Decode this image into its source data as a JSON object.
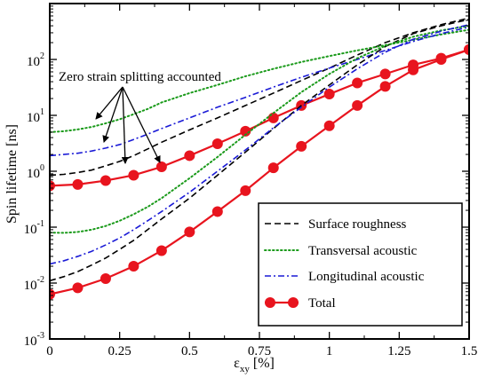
{
  "chart_data": {
    "type": "line",
    "xlabel": "ε",
    "xlabel_sub": "xy",
    "xlabel_unit": " [%]",
    "ylabel": "Spin lifetime [ns]",
    "xlim": [
      0,
      1.5
    ],
    "ylim": [
      0.001,
      1000
    ],
    "yscale": "log",
    "x_ticks": [
      {
        "value": 0,
        "label": "0"
      },
      {
        "value": 0.25,
        "label": "0.25"
      },
      {
        "value": 0.5,
        "label": "0.5"
      },
      {
        "value": 0.75,
        "label": "0.75"
      },
      {
        "value": 1,
        "label": "1"
      },
      {
        "value": 1.25,
        "label": "1.25"
      },
      {
        "value": 1.5,
        "label": "1.5"
      }
    ],
    "y_ticks": [
      {
        "value": 0.001,
        "base": "10",
        "exp": "-3"
      },
      {
        "value": 0.01,
        "base": "10",
        "exp": "-2"
      },
      {
        "value": 0.1,
        "base": "10",
        "exp": "-1"
      },
      {
        "value": 1,
        "base": "10",
        "exp": "0"
      },
      {
        "value": 10,
        "base": "10",
        "exp": "1"
      },
      {
        "value": 100,
        "base": "10",
        "exp": "2"
      }
    ],
    "annotation": {
      "text": "Zero strain splitting accounted"
    },
    "legend_position": "bottom-right",
    "series": [
      {
        "name": "Surface roughness",
        "group": "upper",
        "style": "dashed",
        "color": "#000000",
        "x": [
          0,
          0.05,
          0.1,
          0.15,
          0.2,
          0.25,
          0.3,
          0.35,
          0.4,
          0.5,
          0.6,
          0.7,
          0.8,
          0.9,
          1.0,
          1.1,
          1.2,
          1.3,
          1.4,
          1.5
        ],
        "y": [
          0.85,
          0.88,
          0.95,
          1.05,
          1.25,
          1.5,
          1.9,
          2.5,
          3.3,
          5.5,
          9,
          15,
          25,
          42,
          70,
          120,
          200,
          300,
          420,
          550
        ]
      },
      {
        "name": "Transversal acoustic",
        "group": "upper",
        "style": "dotted",
        "color": "#1a9a1a",
        "x": [
          0,
          0.05,
          0.1,
          0.15,
          0.2,
          0.25,
          0.3,
          0.35,
          0.4,
          0.5,
          0.6,
          0.7,
          0.8,
          0.9,
          1.0,
          1.1,
          1.2,
          1.3,
          1.4,
          1.5
        ],
        "y": [
          5.0,
          5.2,
          5.6,
          6.2,
          7.2,
          8.5,
          10.5,
          13,
          17,
          25,
          35,
          50,
          68,
          90,
          115,
          145,
          180,
          225,
          280,
          340
        ]
      },
      {
        "name": "Longitudinal acoustic",
        "group": "upper",
        "style": "dashdot",
        "color": "#1a1ad6",
        "x": [
          0,
          0.05,
          0.1,
          0.15,
          0.2,
          0.25,
          0.3,
          0.35,
          0.4,
          0.5,
          0.6,
          0.7,
          0.8,
          0.9,
          1.0,
          1.1,
          1.2,
          1.3,
          1.4,
          1.5
        ],
        "y": [
          1.9,
          2.0,
          2.1,
          2.3,
          2.6,
          3.0,
          3.7,
          4.6,
          5.8,
          9,
          14,
          21,
          32,
          48,
          70,
          100,
          145,
          210,
          290,
          380
        ]
      },
      {
        "name": "Total",
        "group": "upper",
        "style": "solid-markers",
        "color": "#e8141e",
        "x": [
          0,
          0.1,
          0.2,
          0.3,
          0.4,
          0.5,
          0.6,
          0.7,
          0.8,
          0.9,
          1.0,
          1.1,
          1.2,
          1.3,
          1.4,
          1.5
        ],
        "y": [
          0.55,
          0.58,
          0.68,
          0.85,
          1.2,
          1.9,
          3.1,
          5.2,
          9,
          15,
          24,
          38,
          55,
          80,
          105,
          150
        ]
      },
      {
        "name": "Surface roughness",
        "group": "lower",
        "style": "dashed",
        "color": "#000000",
        "x": [
          0,
          0.05,
          0.1,
          0.15,
          0.2,
          0.25,
          0.3,
          0.35,
          0.4,
          0.5,
          0.6,
          0.7,
          0.8,
          0.9,
          1.0,
          1.1,
          1.2,
          1.3,
          1.4,
          1.5
        ],
        "y": [
          0.011,
          0.013,
          0.016,
          0.021,
          0.028,
          0.04,
          0.058,
          0.09,
          0.14,
          0.33,
          0.85,
          2.2,
          5.8,
          15,
          35,
          80,
          170,
          290,
          400,
          520
        ]
      },
      {
        "name": "Transversal acoustic",
        "group": "lower",
        "style": "dotted",
        "color": "#1a9a1a",
        "x": [
          0,
          0.05,
          0.1,
          0.15,
          0.2,
          0.25,
          0.3,
          0.35,
          0.4,
          0.5,
          0.6,
          0.7,
          0.8,
          0.9,
          1.0,
          1.1,
          1.2,
          1.3,
          1.4,
          1.5
        ],
        "y": [
          0.08,
          0.079,
          0.082,
          0.09,
          0.105,
          0.13,
          0.17,
          0.23,
          0.33,
          0.75,
          1.8,
          4.5,
          11,
          26,
          55,
          105,
          175,
          255,
          330,
          400
        ]
      },
      {
        "name": "Longitudinal acoustic",
        "group": "lower",
        "style": "dashdot",
        "color": "#1a1ad6",
        "x": [
          0,
          0.05,
          0.1,
          0.15,
          0.2,
          0.25,
          0.3,
          0.35,
          0.4,
          0.5,
          0.6,
          0.7,
          0.8,
          0.9,
          1.0,
          1.1,
          1.2,
          1.3,
          1.4,
          1.5
        ],
        "y": [
          0.022,
          0.025,
          0.03,
          0.037,
          0.048,
          0.064,
          0.09,
          0.13,
          0.19,
          0.42,
          1.0,
          2.4,
          6,
          14,
          32,
          68,
          135,
          230,
          320,
          420
        ]
      },
      {
        "name": "Total",
        "group": "lower",
        "style": "solid-markers",
        "color": "#e8141e",
        "x": [
          0,
          0.1,
          0.2,
          0.3,
          0.4,
          0.5,
          0.6,
          0.7,
          0.8,
          0.9,
          1.0,
          1.1,
          1.2,
          1.3,
          1.4,
          1.5
        ],
        "y": [
          0.0063,
          0.0082,
          0.012,
          0.02,
          0.038,
          0.082,
          0.19,
          0.45,
          1.15,
          2.8,
          6.5,
          15,
          33,
          65,
          100,
          150
        ]
      }
    ]
  }
}
